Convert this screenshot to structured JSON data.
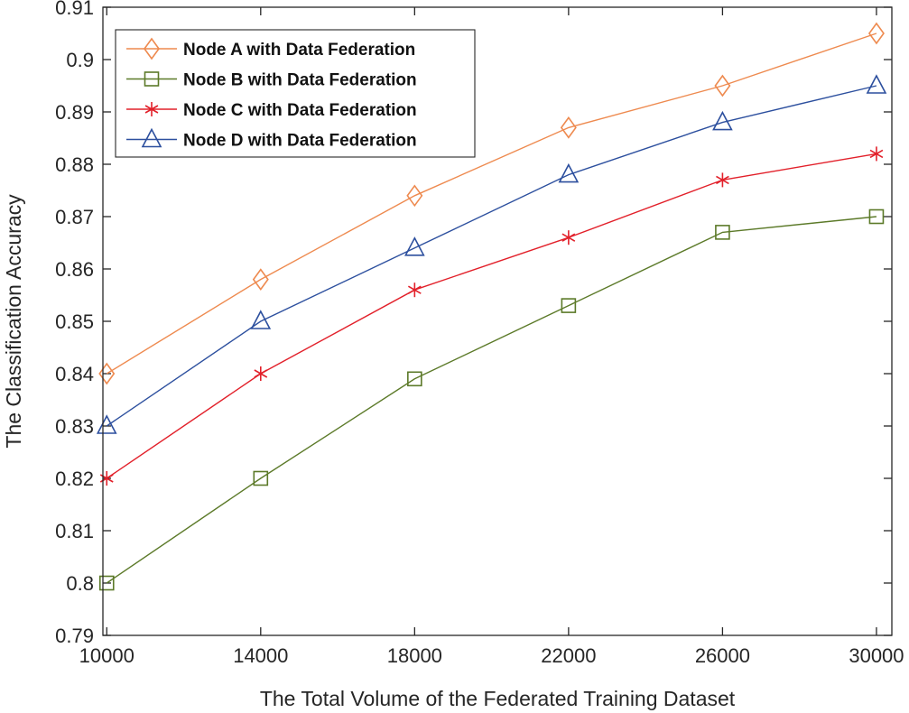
{
  "chart_data": {
    "type": "line",
    "title": "",
    "xlabel": "The Total Volume of the Federated Training Dataset",
    "ylabel": "The Classification Accuracy",
    "x": [
      10000,
      14000,
      18000,
      22000,
      26000,
      30000
    ],
    "xlim": [
      9900,
      30400
    ],
    "ylim": [
      0.79,
      0.91
    ],
    "xticks": [
      10000,
      14000,
      18000,
      22000,
      26000,
      30000
    ],
    "xtick_labels": [
      "10000",
      "14000",
      "18000",
      "22000",
      "26000",
      "30000"
    ],
    "yticks": [
      0.79,
      0.8,
      0.81,
      0.82,
      0.83,
      0.84,
      0.85,
      0.86,
      0.87,
      0.88,
      0.89,
      0.9,
      0.91
    ],
    "ytick_labels": [
      "0.79",
      "0.8",
      "0.81",
      "0.82",
      "0.83",
      "0.84",
      "0.85",
      "0.86",
      "0.87",
      "0.88",
      "0.89",
      "0.9",
      "0.91"
    ],
    "grid": false,
    "legend_position": "top-left",
    "series": [
      {
        "name": "Node A with Data Federation",
        "color": "#ee8a4f",
        "marker": "diamond",
        "values": [
          0.84,
          0.858,
          0.874,
          0.887,
          0.895,
          0.905
        ]
      },
      {
        "name": "Node B with Data Federation",
        "color": "#5c7a29",
        "marker": "square",
        "values": [
          0.8,
          0.82,
          0.839,
          0.853,
          0.867,
          0.87
        ]
      },
      {
        "name": "Node C with Data Federation",
        "color": "#e2202a",
        "marker": "asterisk",
        "values": [
          0.82,
          0.84,
          0.856,
          0.866,
          0.877,
          0.882
        ]
      },
      {
        "name": "Node D with Data Federation",
        "color": "#2c4f9e",
        "marker": "triangle",
        "values": [
          0.83,
          0.85,
          0.864,
          0.878,
          0.888,
          0.895
        ]
      }
    ]
  }
}
